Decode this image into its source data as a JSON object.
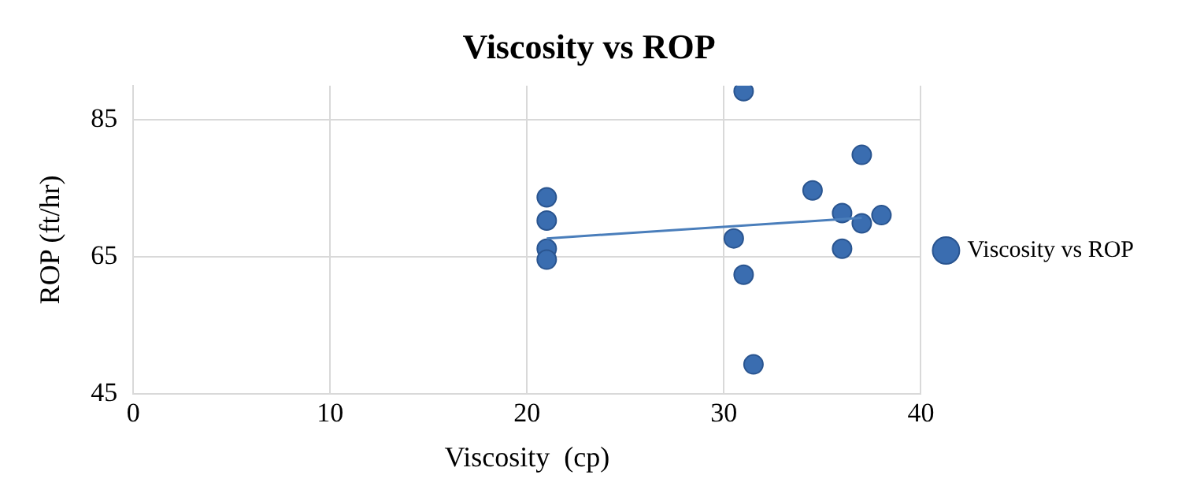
{
  "chart_data": {
    "type": "scatter",
    "title": "Viscosity vs ROP",
    "xlabel": "Viscosity  (cp)",
    "ylabel": "ROP (ft/hr)",
    "xlim": [
      0,
      40
    ],
    "xticks": [
      0,
      10,
      20,
      30,
      40
    ],
    "ylim": [
      45,
      90
    ],
    "yticks": [
      45,
      65,
      85
    ],
    "grid": true,
    "legend": "right",
    "marker": "circle",
    "series": [
      {
        "name": "Viscosity vs ROP",
        "color": "#3a6db0",
        "x": [
          21,
          21,
          21,
          21,
          31,
          30.5,
          31,
          31.5,
          34.5,
          36,
          36,
          37,
          37,
          38
        ],
        "values": [
          73.7,
          70.3,
          66.2,
          64.6,
          89.2,
          67.7,
          62.4,
          49.3,
          74.7,
          71.4,
          66.2,
          79.9,
          69.9,
          71.1
        ]
      },
      {
        "type": "line",
        "color": "#4a7ebb",
        "x": [
          21,
          37
        ],
        "values": [
          67.7,
          70.7
        ],
        "marker": "none"
      }
    ]
  }
}
